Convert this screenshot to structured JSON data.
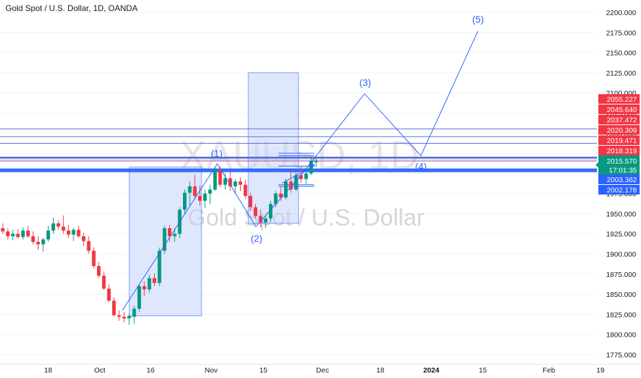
{
  "header": {
    "title": "Gold Spot / U.S. Dollar, 1D, OANDA"
  },
  "watermark": {
    "symbol": "XAUUSD, 1D",
    "description": "Gold Spot / U.S. Dollar"
  },
  "colors": {
    "up": "#089981",
    "down": "#f23645",
    "accent": "#2962ff",
    "box_fill": "#c5d3fa"
  },
  "icons": {
    "crosshair": "crosshair-icon"
  },
  "chart_data": {
    "type": "candlestick",
    "ylim": [
      1775,
      2200
    ],
    "y_ticks": [
      1775,
      1800,
      1825,
      1850,
      1875,
      1900,
      1925,
      1950,
      1975,
      2000,
      2025,
      2050,
      2075,
      2100,
      2125,
      2150,
      2175,
      2200
    ],
    "x_ticks": [
      "18",
      "Oct",
      "16",
      "Nov",
      "15",
      "Dec",
      "18",
      "2024",
      "15",
      "Feb",
      "19"
    ],
    "candles": [
      {
        "o": 1932,
        "h": 1938,
        "l": 1925,
        "c": 1928
      },
      {
        "o": 1928,
        "h": 1932,
        "l": 1918,
        "c": 1922
      },
      {
        "o": 1922,
        "h": 1930,
        "l": 1917,
        "c": 1925
      },
      {
        "o": 1925,
        "h": 1931,
        "l": 1919,
        "c": 1921
      },
      {
        "o": 1921,
        "h": 1933,
        "l": 1918,
        "c": 1929
      },
      {
        "o": 1929,
        "h": 1935,
        "l": 1920,
        "c": 1922
      },
      {
        "o": 1922,
        "h": 1928,
        "l": 1912,
        "c": 1915
      },
      {
        "o": 1915,
        "h": 1922,
        "l": 1905,
        "c": 1912
      },
      {
        "o": 1912,
        "h": 1920,
        "l": 1903,
        "c": 1918
      },
      {
        "o": 1918,
        "h": 1935,
        "l": 1915,
        "c": 1929
      },
      {
        "o": 1929,
        "h": 1945,
        "l": 1925,
        "c": 1938
      },
      {
        "o": 1938,
        "h": 1942,
        "l": 1930,
        "c": 1934
      },
      {
        "o": 1934,
        "h": 1948,
        "l": 1925,
        "c": 1929
      },
      {
        "o": 1929,
        "h": 1936,
        "l": 1920,
        "c": 1924
      },
      {
        "o": 1924,
        "h": 1932,
        "l": 1916,
        "c": 1930
      },
      {
        "o": 1930,
        "h": 1935,
        "l": 1920,
        "c": 1922
      },
      {
        "o": 1922,
        "h": 1926,
        "l": 1910,
        "c": 1916
      },
      {
        "o": 1916,
        "h": 1922,
        "l": 1900,
        "c": 1904
      },
      {
        "o": 1904,
        "h": 1908,
        "l": 1882,
        "c": 1885
      },
      {
        "o": 1885,
        "h": 1890,
        "l": 1870,
        "c": 1873
      },
      {
        "o": 1873,
        "h": 1878,
        "l": 1855,
        "c": 1857
      },
      {
        "o": 1857,
        "h": 1862,
        "l": 1840,
        "c": 1842
      },
      {
        "o": 1842,
        "h": 1846,
        "l": 1822,
        "c": 1824
      },
      {
        "o": 1824,
        "h": 1830,
        "l": 1817,
        "c": 1822
      },
      {
        "o": 1822,
        "h": 1828,
        "l": 1815,
        "c": 1820
      },
      {
        "o": 1820,
        "h": 1826,
        "l": 1812,
        "c": 1823
      },
      {
        "o": 1822,
        "h": 1836,
        "l": 1813,
        "c": 1832
      },
      {
        "o": 1832,
        "h": 1862,
        "l": 1828,
        "c": 1860
      },
      {
        "o": 1860,
        "h": 1866,
        "l": 1848,
        "c": 1856
      },
      {
        "o": 1856,
        "h": 1874,
        "l": 1852,
        "c": 1870
      },
      {
        "o": 1870,
        "h": 1876,
        "l": 1860,
        "c": 1864
      },
      {
        "o": 1864,
        "h": 1908,
        "l": 1860,
        "c": 1904
      },
      {
        "o": 1904,
        "h": 1935,
        "l": 1900,
        "c": 1932
      },
      {
        "o": 1932,
        "h": 1936,
        "l": 1915,
        "c": 1922
      },
      {
        "o": 1922,
        "h": 1932,
        "l": 1915,
        "c": 1925
      },
      {
        "o": 1925,
        "h": 1958,
        "l": 1920,
        "c": 1955
      },
      {
        "o": 1955,
        "h": 1980,
        "l": 1950,
        "c": 1976
      },
      {
        "o": 1976,
        "h": 1990,
        "l": 1960,
        "c": 1984
      },
      {
        "o": 1984,
        "h": 1998,
        "l": 1968,
        "c": 1972
      },
      {
        "o": 1972,
        "h": 1985,
        "l": 1960,
        "c": 1966
      },
      {
        "o": 1966,
        "h": 1980,
        "l": 1957,
        "c": 1975
      },
      {
        "o": 1975,
        "h": 1986,
        "l": 1962,
        "c": 1980
      },
      {
        "o": 1980,
        "h": 2008,
        "l": 1978,
        "c": 2005
      },
      {
        "o": 2005,
        "h": 2009,
        "l": 1983,
        "c": 1986
      },
      {
        "o": 1986,
        "h": 2000,
        "l": 1980,
        "c": 1994
      },
      {
        "o": 1994,
        "h": 2002,
        "l": 1978,
        "c": 1984
      },
      {
        "o": 1984,
        "h": 1993,
        "l": 1975,
        "c": 1990
      },
      {
        "o": 1990,
        "h": 1995,
        "l": 1978,
        "c": 1986
      },
      {
        "o": 1986,
        "h": 1992,
        "l": 1968,
        "c": 1972
      },
      {
        "o": 1972,
        "h": 1976,
        "l": 1954,
        "c": 1958
      },
      {
        "o": 1958,
        "h": 1962,
        "l": 1944,
        "c": 1947
      },
      {
        "o": 1947,
        "h": 1955,
        "l": 1933,
        "c": 1939
      },
      {
        "o": 1939,
        "h": 1948,
        "l": 1932,
        "c": 1944
      },
      {
        "o": 1944,
        "h": 1966,
        "l": 1940,
        "c": 1962
      },
      {
        "o": 1962,
        "h": 1978,
        "l": 1958,
        "c": 1975
      },
      {
        "o": 1975,
        "h": 1984,
        "l": 1966,
        "c": 1970
      },
      {
        "o": 1970,
        "h": 1993,
        "l": 1968,
        "c": 1990
      },
      {
        "o": 1990,
        "h": 2003,
        "l": 1976,
        "c": 1980
      },
      {
        "o": 1980,
        "h": 2002,
        "l": 1978,
        "c": 1998
      },
      {
        "o": 1998,
        "h": 2008,
        "l": 1988,
        "c": 1993
      },
      {
        "o": 1993,
        "h": 2003,
        "l": 1987,
        "c": 2000
      },
      {
        "o": 2000,
        "h": 2020,
        "l": 1998,
        "c": 2016
      },
      {
        "o": 2014,
        "h": 2020,
        "l": 2008,
        "c": 2016
      }
    ],
    "horizontal_levels": [
      2055.227,
      2045.64,
      2037.472,
      2020.309,
      2019.471,
      2018.319,
      2015.57,
      2003.362,
      2002.178
    ],
    "level_lines": [
      2025,
      2022,
      2009,
      1986,
      1984
    ],
    "current": {
      "price": "2015.570",
      "countdown": "17:01:35"
    },
    "price_labels": [
      {
        "value": "2055.227",
        "color": "#f23645",
        "text": "#ffffff"
      },
      {
        "value": "2045.640",
        "color": "#f23645",
        "text": "#ffffff"
      },
      {
        "value": "2037.472",
        "color": "#f23645",
        "text": "#ffffff"
      },
      {
        "value": "2020.309",
        "color": "#f23645",
        "text": "#ffffff"
      },
      {
        "value": "2019.471",
        "color": "#f23645",
        "text": "#ffffff"
      },
      {
        "value": "2018.319",
        "color": "#f23645",
        "text": "#ffffff"
      },
      {
        "value": "2003.362",
        "color": "#2962ff",
        "text": "#ffffff"
      },
      {
        "value": "2002.178",
        "color": "#2962ff",
        "text": "#ffffff"
      }
    ],
    "wave_labels": [
      "(1)",
      "(2)",
      "(3)",
      "(4)",
      "(5)"
    ],
    "wave_prices": [
      2010,
      1935,
      2098,
      2022,
      2177
    ]
  }
}
